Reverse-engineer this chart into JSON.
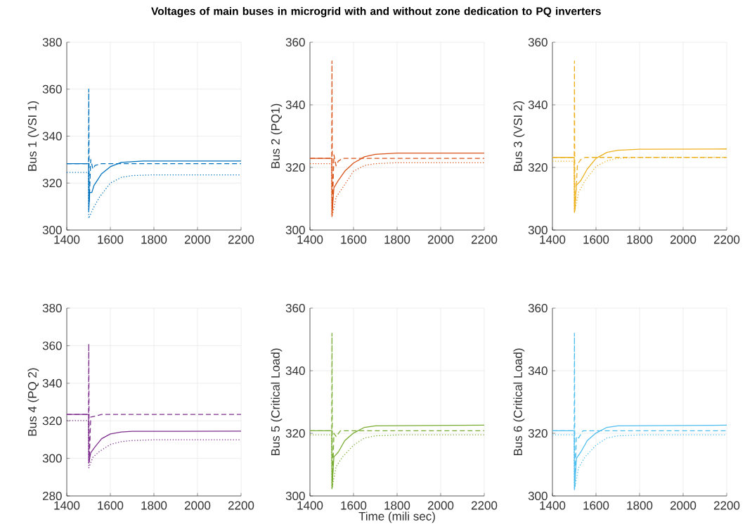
{
  "chart_data": [
    {
      "type": "line",
      "ylabel": "Bus 1 (VSI 1)",
      "xlim": [
        1400,
        2200
      ],
      "ylim": [
        300,
        380
      ],
      "xticks": [
        1400,
        1600,
        1800,
        2000,
        2200
      ],
      "yticks": [
        300,
        320,
        340,
        360,
        380
      ],
      "grid": true,
      "series": [
        {
          "color": "#0072bd",
          "line_style": "solid",
          "x": [
            1400,
            1500,
            1501,
            1505,
            1515,
            1525,
            1560,
            1600,
            1650,
            1750,
            2200
          ],
          "values": [
            328.3,
            328.3,
            308,
            316,
            316,
            319,
            324,
            327,
            328.8,
            329.4,
            329.4
          ]
        },
        {
          "color": "#0072bd",
          "line_style": "dashed",
          "x": [
            1400,
            1500,
            1501,
            1503,
            1510,
            1520,
            1530,
            1560,
            2200
          ],
          "values": [
            328.3,
            328.3,
            360,
            312,
            330,
            326,
            327.5,
            328.3,
            328.3
          ]
        },
        {
          "color": "#0072bd",
          "line_style": "dotted",
          "x": [
            1400,
            1499,
            1501,
            1520,
            1550,
            1600,
            1650,
            1700,
            1800,
            2200
          ],
          "values": [
            324.5,
            324.5,
            305,
            309,
            314,
            320,
            322.4,
            323.2,
            323.5,
            323.5
          ]
        }
      ]
    },
    {
      "type": "line",
      "title": "Voltages of main buses in microgrid with and without zone dedication to PQ inverters",
      "ylabel": "Bus 2 (PQ1)",
      "xlim": [
        1400,
        2200
      ],
      "ylim": [
        300,
        360
      ],
      "xticks": [
        1400,
        1600,
        1800,
        2000,
        2200
      ],
      "yticks": [
        300,
        320,
        340,
        360
      ],
      "grid": true,
      "series": [
        {
          "color": "#d95319",
          "line_style": "solid",
          "x": [
            1400,
            1500,
            1501,
            1510,
            1530,
            1560,
            1600,
            1650,
            1700,
            1800,
            2200
          ],
          "values": [
            322.9,
            322.9,
            304.5,
            313.5,
            315.8,
            318.8,
            321.4,
            323.4,
            324.2,
            324.6,
            324.6
          ]
        },
        {
          "color": "#d95319",
          "line_style": "dashed",
          "x": [
            1400,
            1500,
            1501,
            1503,
            1510,
            1520,
            1530,
            1550,
            2200
          ],
          "values": [
            322.9,
            322.9,
            354,
            306,
            324,
            320.5,
            322,
            322.9,
            322.9
          ]
        },
        {
          "color": "#d95319",
          "line_style": "dotted",
          "x": [
            1400,
            1499,
            1501,
            1520,
            1550,
            1600,
            1650,
            1700,
            1800,
            2200
          ],
          "values": [
            321.2,
            321.2,
            304.1,
            310.5,
            313.5,
            318.8,
            320.6,
            321.2,
            321.5,
            321.5
          ]
        }
      ]
    },
    {
      "type": "line",
      "ylabel": "Bus 3 (VSI 2)",
      "xlim": [
        1400,
        2200
      ],
      "ylim": [
        300,
        360
      ],
      "xticks": [
        1400,
        1600,
        1800,
        2000,
        2200
      ],
      "yticks": [
        300,
        320,
        340,
        360
      ],
      "grid": true,
      "series": [
        {
          "color": "#edb120",
          "line_style": "solid",
          "x": [
            1400,
            1500,
            1501,
            1510,
            1530,
            1560,
            1600,
            1650,
            1700,
            1800,
            2200
          ],
          "values": [
            323.2,
            323.2,
            305.6,
            314.3,
            315.8,
            319.5,
            322.9,
            324.8,
            325.5,
            325.8,
            325.9
          ]
        },
        {
          "color": "#edb120",
          "line_style": "dashed",
          "x": [
            1400,
            1500,
            1501,
            1503,
            1515,
            1530,
            1550,
            2200
          ],
          "values": [
            323.2,
            323.2,
            354,
            306,
            321,
            322.5,
            323.2,
            323.2
          ]
        },
        {
          "color": "#edb120",
          "line_style": "dotted",
          "x": [
            1400,
            1499,
            1501,
            1520,
            1550,
            1600,
            1650,
            1700,
            1800,
            2200
          ],
          "values": [
            322,
            322,
            305.6,
            312,
            315.8,
            320.3,
            322.1,
            322.9,
            323.2,
            323.2
          ]
        }
      ]
    },
    {
      "type": "line",
      "ylabel": "Bus 4 (PQ 2)",
      "xlim": [
        1400,
        2200
      ],
      "ylim": [
        280,
        380
      ],
      "xticks": [
        1400,
        1600,
        1800,
        2000,
        2200
      ],
      "yticks": [
        280,
        300,
        320,
        340,
        360,
        380
      ],
      "grid": true,
      "series": [
        {
          "color": "#7e2f8e",
          "line_style": "solid",
          "x": [
            1400,
            1500,
            1501,
            1510,
            1530,
            1560,
            1600,
            1650,
            1700,
            2200
          ],
          "values": [
            323.4,
            323.4,
            297.5,
            303,
            306.2,
            310.5,
            313,
            314,
            314.4,
            314.5
          ]
        },
        {
          "color": "#7e2f8e",
          "line_style": "dashed",
          "x": [
            1400,
            1500,
            1501,
            1503,
            1510,
            1530,
            1560,
            2200
          ],
          "values": [
            323.4,
            323.4,
            361,
            298,
            322,
            322.5,
            323.4,
            323.4
          ]
        },
        {
          "color": "#7e2f8e",
          "line_style": "dotted",
          "x": [
            1400,
            1499,
            1501,
            1520,
            1550,
            1600,
            1650,
            1700,
            1800,
            2200
          ],
          "values": [
            320.1,
            320.1,
            295,
            300.6,
            303.7,
            307.4,
            308.9,
            309.5,
            309.9,
            309.9
          ]
        }
      ]
    },
    {
      "type": "line",
      "xlabel": "Time (mili sec)",
      "ylabel": "Bus 5 (Critical Load)",
      "xlim": [
        1400,
        2200
      ],
      "ylim": [
        300,
        360
      ],
      "xticks": [
        1400,
        1600,
        1800,
        2000,
        2200
      ],
      "yticks": [
        300,
        320,
        340,
        360
      ],
      "grid": true,
      "series": [
        {
          "color": "#77ac30",
          "line_style": "solid",
          "x": [
            1400,
            1500,
            1501,
            1510,
            1530,
            1560,
            1600,
            1650,
            1700,
            2200
          ],
          "values": [
            320.8,
            320.8,
            302.3,
            312.5,
            314,
            317.7,
            320.1,
            321.9,
            322.4,
            322.6
          ]
        },
        {
          "color": "#77ac30",
          "line_style": "dashed",
          "x": [
            1400,
            1500,
            1501,
            1503,
            1510,
            1520,
            1540,
            2200
          ],
          "values": [
            320.8,
            320.8,
            352,
            303,
            320,
            319,
            320.8,
            320.8
          ]
        },
        {
          "color": "#77ac30",
          "line_style": "dotted",
          "x": [
            1400,
            1499,
            1501,
            1520,
            1550,
            1600,
            1650,
            1700,
            1800,
            2200
          ],
          "values": [
            319.5,
            319.5,
            302.3,
            309.4,
            312.5,
            316.2,
            318.5,
            319.2,
            319.5,
            319.5
          ]
        }
      ]
    },
    {
      "type": "line",
      "ylabel": "Bus 6 (Critical Load)",
      "xlim": [
        1400,
        2200
      ],
      "ylim": [
        300,
        360
      ],
      "xticks": [
        1400,
        1600,
        1800,
        2000,
        2200
      ],
      "yticks": [
        300,
        320,
        340,
        360
      ],
      "grid": true,
      "series": [
        {
          "color": "#4dbeee",
          "line_style": "solid",
          "x": [
            1400,
            1500,
            1501,
            1510,
            1530,
            1560,
            1600,
            1650,
            1700,
            2200
          ],
          "values": [
            320.8,
            320.8,
            302,
            312,
            314,
            317.7,
            320.1,
            321.9,
            322.4,
            322.6
          ]
        },
        {
          "color": "#4dbeee",
          "line_style": "dashed",
          "x": [
            1400,
            1500,
            1501,
            1503,
            1510,
            1520,
            1540,
            2200
          ],
          "values": [
            320.8,
            320.8,
            352,
            303,
            319,
            318.5,
            320.8,
            320.8
          ]
        },
        {
          "color": "#4dbeee",
          "line_style": "dotted",
          "x": [
            1400,
            1499,
            1501,
            1520,
            1550,
            1600,
            1650,
            1700,
            1800,
            2200
          ],
          "values": [
            319.5,
            319.5,
            302,
            309,
            312.5,
            316.2,
            318.5,
            319.2,
            319.5,
            319.5
          ]
        }
      ]
    }
  ]
}
